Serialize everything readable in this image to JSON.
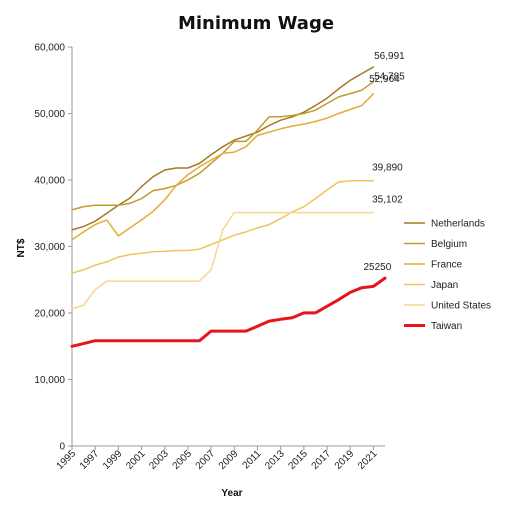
{
  "chart_data": {
    "type": "line",
    "title": "Minimum Wage",
    "xlabel": "Year",
    "ylabel": "NT$",
    "ylim": [
      0,
      60000
    ],
    "yticks": [
      "0",
      "10,000",
      "20,000",
      "30,000",
      "40,000",
      "50,000",
      "60,000"
    ],
    "yticks_values": [
      0,
      10000,
      20000,
      30000,
      40000,
      50000,
      60000
    ],
    "xticks": [
      "1995",
      "1997",
      "1999",
      "2001",
      "2003",
      "2005",
      "2007",
      "2009",
      "2011",
      "2013",
      "2015",
      "2017",
      "2019",
      "2021"
    ],
    "x": [
      1995,
      1996,
      1997,
      1998,
      1999,
      2000,
      2001,
      2002,
      2003,
      2004,
      2005,
      2006,
      2007,
      2008,
      2009,
      2010,
      2011,
      2012,
      2013,
      2014,
      2015,
      2016,
      2017,
      2018,
      2019,
      2020,
      2021,
      2022
    ],
    "grid": false,
    "legend_position": "right",
    "series": [
      {
        "name": "Netherlands",
        "color": "#a07a22",
        "width": 1.5,
        "values": [
          32500,
          33000,
          33800,
          35000,
          36200,
          37300,
          39000,
          40500,
          41500,
          41800,
          41800,
          42500,
          43800,
          45000,
          46000,
          46600,
          47200,
          48200,
          49000,
          49500,
          50200,
          51200,
          52300,
          53700,
          55000,
          56000,
          56991,
          null
        ]
      },
      {
        "name": "Belgium",
        "color": "#c49a2c",
        "width": 1.5,
        "values": [
          35500,
          36000,
          36200,
          36200,
          36200,
          36500,
          37200,
          38400,
          38700,
          39200,
          40000,
          41000,
          42500,
          44000,
          45800,
          45800,
          47500,
          49500,
          49500,
          49700,
          50000,
          50500,
          51500,
          52500,
          53000,
          53500,
          54785,
          null
        ]
      },
      {
        "name": "France",
        "color": "#e2ad36",
        "width": 1.5,
        "values": [
          31000,
          32200,
          33300,
          34000,
          31600,
          32800,
          34000,
          35300,
          37000,
          39200,
          40800,
          42000,
          43000,
          44000,
          44200,
          45000,
          46700,
          47200,
          47700,
          48100,
          48400,
          48800,
          49300,
          50000,
          50600,
          51200,
          52964,
          null
        ]
      },
      {
        "name": "Japan",
        "color": "#f0c45c",
        "width": 1.5,
        "values": [
          26000,
          26500,
          27200,
          27700,
          28400,
          28800,
          29000,
          29200,
          29300,
          29400,
          29400,
          29600,
          30300,
          31000,
          31700,
          32200,
          32800,
          33300,
          34200,
          35200,
          36000,
          37200,
          38500,
          39700,
          39890,
          39890,
          39890,
          null
        ]
      },
      {
        "name": "United States",
        "color": "#f6d792",
        "width": 1.5,
        "values": [
          20600,
          21200,
          23500,
          24800,
          24800,
          24800,
          24800,
          24800,
          24800,
          24800,
          24800,
          24800,
          26500,
          32500,
          35102,
          35102,
          35102,
          35102,
          35102,
          35102,
          35102,
          35102,
          35102,
          35102,
          35102,
          35102,
          35102,
          null
        ]
      },
      {
        "name": "Taiwan",
        "color": "#e8141c",
        "width": 3,
        "values": [
          15000,
          15400,
          15840,
          15840,
          15840,
          15840,
          15840,
          15840,
          15840,
          15840,
          15840,
          15840,
          17280,
          17280,
          17280,
          17280,
          18000,
          18780,
          19047,
          19273,
          20008,
          20008,
          21009,
          22000,
          23100,
          23800,
          24000,
          25250
        ]
      }
    ],
    "annotations": [
      {
        "text": "56,991",
        "x": 2021,
        "y": 56991
      },
      {
        "text": "54,785",
        "x": 2021,
        "y": 54785
      },
      {
        "text": "52,964",
        "x": 2021,
        "y": 52964
      },
      {
        "text": "39,890",
        "x": 2021,
        "y": 39890
      },
      {
        "text": "35,102",
        "x": 2021,
        "y": 35102
      },
      {
        "text": "25250",
        "x": 2021,
        "y": 25250
      }
    ]
  }
}
